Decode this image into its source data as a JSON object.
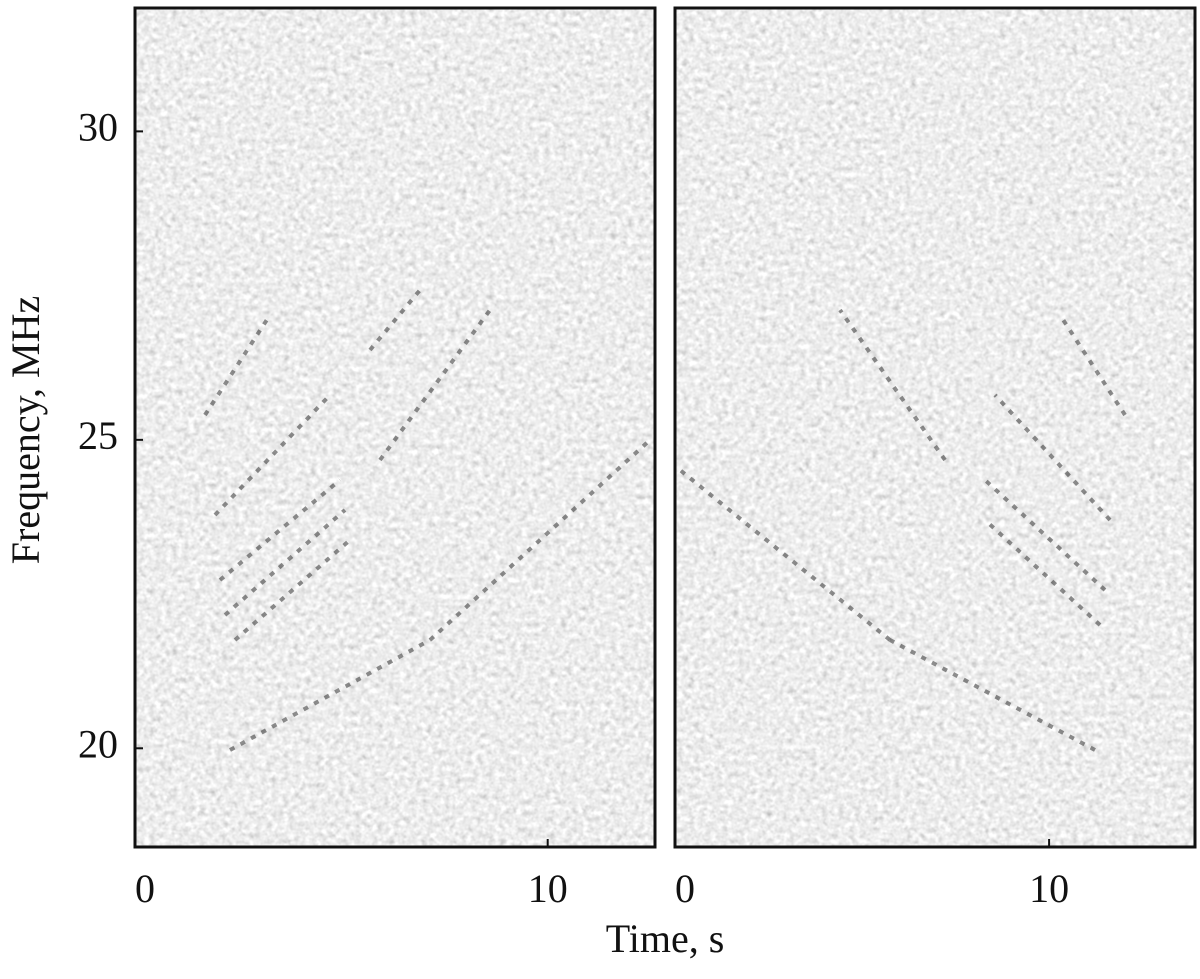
{
  "chart_data": [
    {
      "type": "spectrogram",
      "xlabel": "Time, s",
      "ylabel": "Frequency, MHz",
      "xlim": [
        0,
        12.6
      ],
      "xticks": [
        0,
        10
      ],
      "ylim": [
        18.4,
        32
      ],
      "yticks": [
        20,
        25,
        30
      ]
    },
    {
      "type": "spectrogram",
      "xlim": [
        0,
        13.9
      ],
      "xticks": [
        0,
        10
      ],
      "ylim": [
        18.4,
        32
      ]
    }
  ]
}
